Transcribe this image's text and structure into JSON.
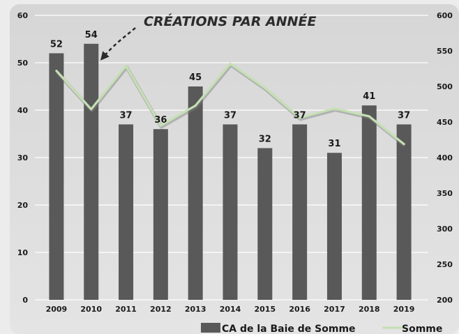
{
  "chart_data": {
    "type": "bar",
    "title": "CRÉATIONS PAR ANNÉE",
    "categories": [
      "2009",
      "2010",
      "2011",
      "2012",
      "2013",
      "2014",
      "2015",
      "2016",
      "2017",
      "2018",
      "2019"
    ],
    "series": [
      {
        "name": "CA de la Baie de Somme",
        "type": "bar",
        "axis": "left",
        "values": [
          52,
          54,
          37,
          36,
          45,
          37,
          32,
          37,
          31,
          41,
          37
        ]
      },
      {
        "name": "Somme",
        "type": "line",
        "axis": "right",
        "values": [
          522,
          468,
          529,
          445,
          473,
          532,
          498,
          456,
          469,
          458,
          419
        ]
      }
    ],
    "ylim": [
      0,
      60
    ],
    "yticks": [
      "0",
      "10",
      "20",
      "30",
      "40",
      "50",
      "60"
    ],
    "y2lim": [
      200,
      600
    ],
    "y2ticks": [
      "200",
      "250",
      "300",
      "350",
      "400",
      "450",
      "500",
      "550",
      "600"
    ],
    "grid": true,
    "legend": "bottom-right",
    "colors": {
      "bar": "#595959",
      "line": "#c5e0b4",
      "line_shadow": "#7f7f7f",
      "grid": "#ffffff",
      "plot_bg": "#d9d9d9",
      "arrow": "#2b2b2b"
    }
  }
}
